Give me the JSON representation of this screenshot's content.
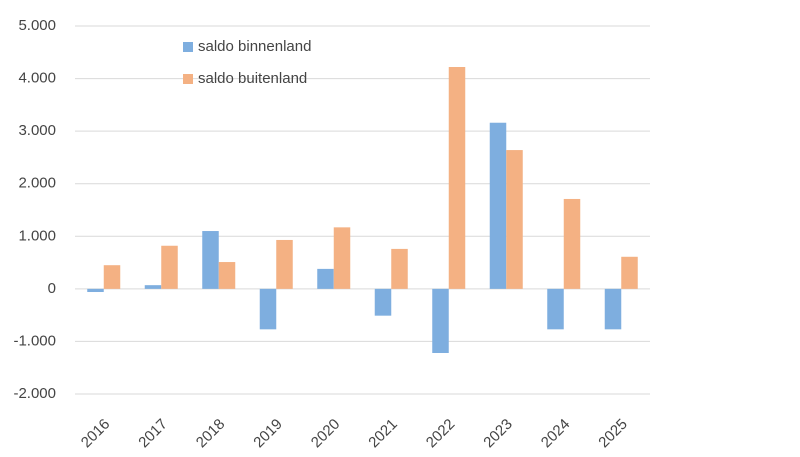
{
  "chart_data": {
    "type": "bar",
    "categories": [
      "2016",
      "2017",
      "2018",
      "2019",
      "2020",
      "2021",
      "2022",
      "2023",
      "2024",
      "2025"
    ],
    "series": [
      {
        "name": "saldo binnenland",
        "color": "#7eaedf",
        "values": [
          -60,
          70,
          1100,
          -770,
          380,
          -510,
          -1220,
          3160,
          -770,
          -770
        ]
      },
      {
        "name": "saldo buitenland",
        "color": "#f4b183",
        "values": [
          450,
          820,
          510,
          930,
          1170,
          760,
          4220,
          2640,
          1710,
          610
        ]
      }
    ],
    "ylim": [
      -2000,
      5000
    ],
    "yticks": [
      {
        "value": -2000,
        "label": "-2.000"
      },
      {
        "value": -1000,
        "label": "-1.000"
      },
      0,
      {
        "value": 1000,
        "label": "1.000"
      },
      {
        "value": 2000,
        "label": "2.000"
      },
      {
        "value": 3000,
        "label": "3.000"
      },
      {
        "value": 4000,
        "label": "4.000"
      },
      {
        "value": 5000,
        "label": "5.000"
      }
    ],
    "grid": true,
    "legend": "top-left"
  }
}
